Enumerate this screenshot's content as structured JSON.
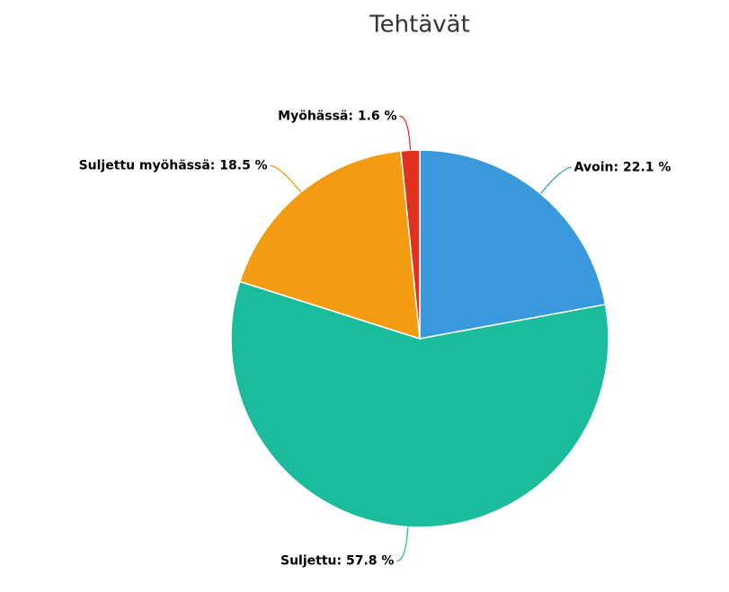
{
  "chart_data": {
    "type": "pie",
    "title": "Tehtävät",
    "values": [
      22.1,
      57.8,
      18.5,
      1.6
    ],
    "value_labels": [
      "Avoin: 22.1 %",
      "Suljettu: 57.8 %",
      "Suljettu myöhässä: 18.5 %",
      "Myöhässä: 1.6 %"
    ],
    "colors": [
      "#3a98dc",
      "#1abc9c",
      "#f39c12",
      "#e0301e"
    ]
  }
}
